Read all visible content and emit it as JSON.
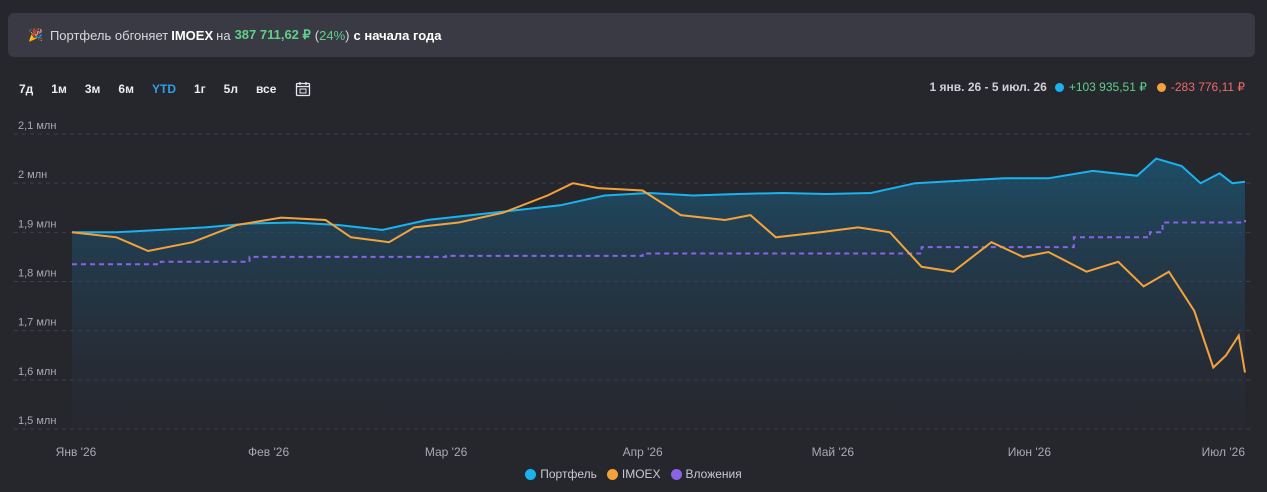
{
  "banner": {
    "prefix": "Портфель обгоняет",
    "benchmark": "IMOEX",
    "on": "на",
    "amount": "387 711,62 ₽",
    "paren_open": "(",
    "percent": "24%",
    "paren_close": ")",
    "suffix": "с начала года"
  },
  "ranges": [
    {
      "label": "7д",
      "active": false
    },
    {
      "label": "1м",
      "active": false
    },
    {
      "label": "3м",
      "active": false
    },
    {
      "label": "6м",
      "active": false
    },
    {
      "label": "YTD",
      "active": true
    },
    {
      "label": "1г",
      "active": false
    },
    {
      "label": "5л",
      "active": false
    },
    {
      "label": "все",
      "active": false
    }
  ],
  "summary": {
    "period": "1 янв. 26 - 5 июл. 26",
    "portfolio_delta": "+103 935,51 ₽",
    "imoex_delta": "-283 776,11 ₽"
  },
  "colors": {
    "portfolio": "#1ab3ee",
    "imoex": "#f4a23b",
    "invested": "#8a63e6",
    "positive": "#5fd08a",
    "negative": "#ee6b6b",
    "active_range": "#2f9ee8"
  },
  "chart_data": {
    "type": "line",
    "x_tick_labels": [
      "Янв '26",
      "Фев '26",
      "Мар '26",
      "Апр '26",
      "Май '26",
      "Июн '26",
      "Июл '26"
    ],
    "y_tick_labels": [
      "1,5 млн",
      "1,6 млн",
      "1,7 млн",
      "1,8 млн",
      "1,9 млн",
      "2 млн",
      "2,1 млн"
    ],
    "ylim": [
      1.5,
      2.1
    ],
    "y_unit": "млн ₽",
    "x_range": [
      "2026-01-01",
      "2026-07-05"
    ],
    "grid": "horizontal dashed",
    "legend_position": "bottom-center",
    "series": [
      {
        "name": "Портфель",
        "style": "solid area",
        "points": [
          [
            "2026-01-01",
            1.9
          ],
          [
            "2026-01-08",
            1.9
          ],
          [
            "2026-01-15",
            1.905
          ],
          [
            "2026-01-22",
            1.91
          ],
          [
            "2026-01-29",
            1.918
          ],
          [
            "2026-02-05",
            1.92
          ],
          [
            "2026-02-12",
            1.915
          ],
          [
            "2026-02-19",
            1.905
          ],
          [
            "2026-02-26",
            1.925
          ],
          [
            "2026-03-05",
            1.935
          ],
          [
            "2026-03-12",
            1.945
          ],
          [
            "2026-03-19",
            1.955
          ],
          [
            "2026-03-26",
            1.975
          ],
          [
            "2026-04-02",
            1.98
          ],
          [
            "2026-04-09",
            1.975
          ],
          [
            "2026-04-16",
            1.978
          ],
          [
            "2026-04-23",
            1.98
          ],
          [
            "2026-04-30",
            1.978
          ],
          [
            "2026-05-07",
            1.98
          ],
          [
            "2026-05-14",
            2.0
          ],
          [
            "2026-05-21",
            2.005
          ],
          [
            "2026-05-28",
            2.01
          ],
          [
            "2026-06-04",
            2.01
          ],
          [
            "2026-06-11",
            2.025
          ],
          [
            "2026-06-18",
            2.015
          ],
          [
            "2026-06-21",
            2.05
          ],
          [
            "2026-06-25",
            2.035
          ],
          [
            "2026-06-28",
            2.0
          ],
          [
            "2026-07-01",
            2.02
          ],
          [
            "2026-07-03",
            2.0
          ],
          [
            "2026-07-05",
            2.003
          ]
        ]
      },
      {
        "name": "IMOEX",
        "style": "solid",
        "points": [
          [
            "2026-01-01",
            1.9
          ],
          [
            "2026-01-08",
            1.89
          ],
          [
            "2026-01-13",
            1.862
          ],
          [
            "2026-01-20",
            1.88
          ],
          [
            "2026-01-27",
            1.915
          ],
          [
            "2026-02-03",
            1.93
          ],
          [
            "2026-02-10",
            1.925
          ],
          [
            "2026-02-14",
            1.89
          ],
          [
            "2026-02-20",
            1.88
          ],
          [
            "2026-02-24",
            1.91
          ],
          [
            "2026-03-03",
            1.92
          ],
          [
            "2026-03-10",
            1.94
          ],
          [
            "2026-03-17",
            1.975
          ],
          [
            "2026-03-21",
            2.0
          ],
          [
            "2026-03-25",
            1.99
          ],
          [
            "2026-04-01",
            1.985
          ],
          [
            "2026-04-07",
            1.935
          ],
          [
            "2026-04-14",
            1.925
          ],
          [
            "2026-04-18",
            1.935
          ],
          [
            "2026-04-22",
            1.89
          ],
          [
            "2026-04-29",
            1.9
          ],
          [
            "2026-05-05",
            1.91
          ],
          [
            "2026-05-10",
            1.9
          ],
          [
            "2026-05-15",
            1.83
          ],
          [
            "2026-05-20",
            1.82
          ],
          [
            "2026-05-26",
            1.88
          ],
          [
            "2026-05-31",
            1.85
          ],
          [
            "2026-06-04",
            1.86
          ],
          [
            "2026-06-10",
            1.82
          ],
          [
            "2026-06-15",
            1.84
          ],
          [
            "2026-06-19",
            1.79
          ],
          [
            "2026-06-23",
            1.82
          ],
          [
            "2026-06-27",
            1.74
          ],
          [
            "2026-06-30",
            1.625
          ],
          [
            "2026-07-02",
            1.65
          ],
          [
            "2026-07-04",
            1.69
          ],
          [
            "2026-07-05",
            1.615
          ]
        ]
      },
      {
        "name": "Вложения",
        "style": "dashed",
        "points": [
          [
            "2026-01-01",
            1.835
          ],
          [
            "2026-01-15",
            1.84
          ],
          [
            "2026-01-29",
            1.85
          ],
          [
            "2026-03-01",
            1.852
          ],
          [
            "2026-04-01",
            1.857
          ],
          [
            "2026-05-10",
            1.857
          ],
          [
            "2026-05-15",
            1.87
          ],
          [
            "2026-06-08",
            1.89
          ],
          [
            "2026-06-20",
            1.9
          ],
          [
            "2026-06-22",
            1.92
          ],
          [
            "2026-07-05",
            1.925
          ]
        ]
      }
    ]
  }
}
